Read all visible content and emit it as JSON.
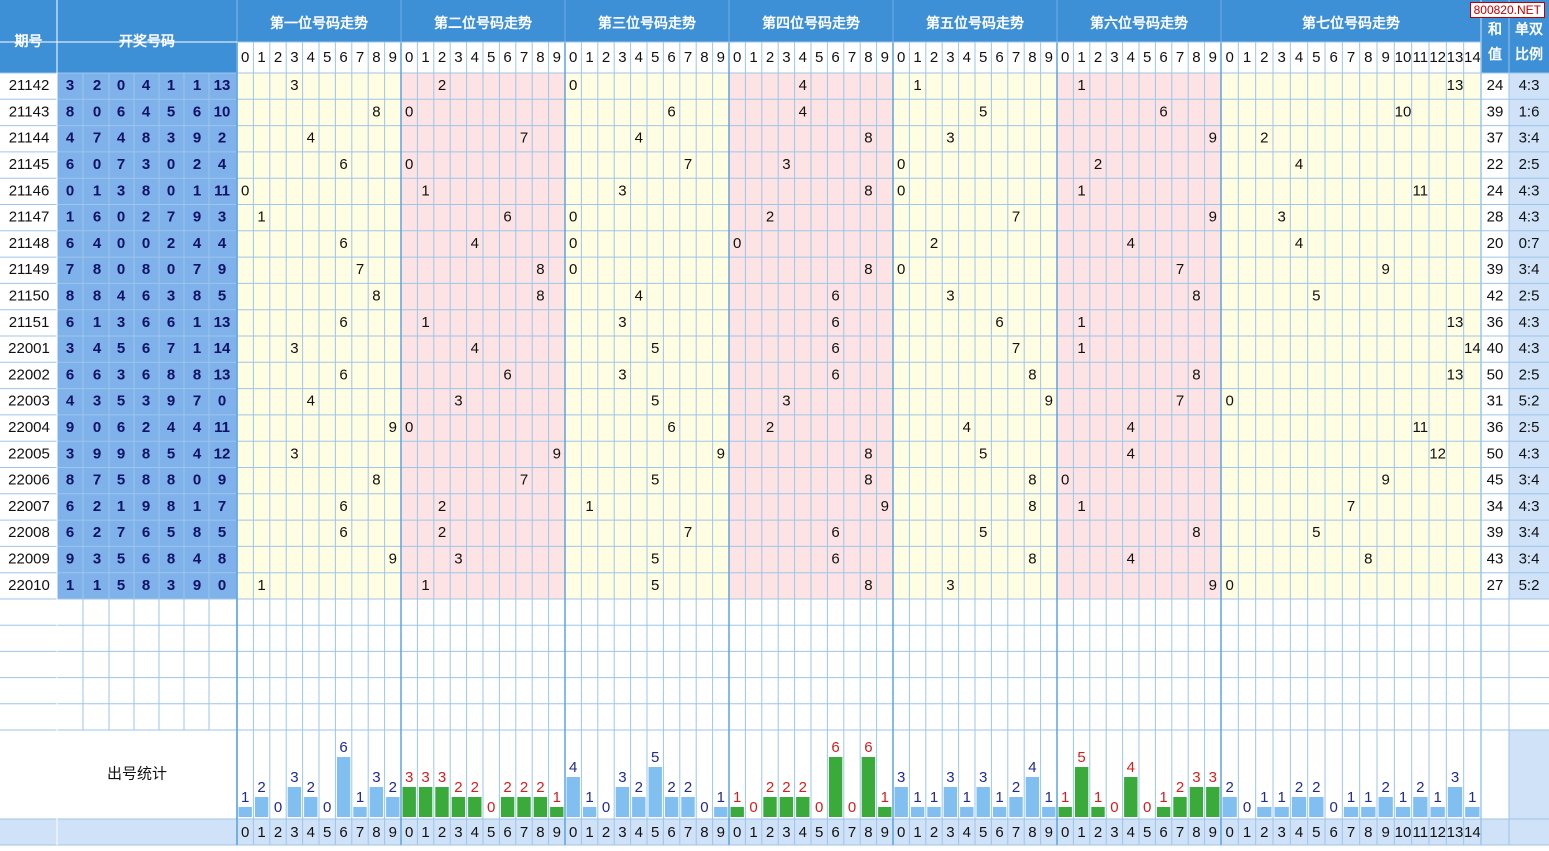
{
  "watermark": "800820.NET",
  "headers": {
    "period": "期号",
    "draw": "开奖号码",
    "sum": "和值",
    "ratio": "单双比例",
    "stats": "出号统计",
    "sections": [
      "第一位号码走势",
      "第二位号码走势",
      "第三位号码走势",
      "第四位号码走势",
      "第五位号码走势",
      "第六位号码走势",
      "第七位号码走势"
    ]
  },
  "colors": {
    "header_bg": "#3d8fd6",
    "draw_bg": "#7fb1ea",
    "yellow": "#fffde2",
    "pink": "#fde3e3",
    "grid": "#9cc6ea",
    "side_bg": "#cfe2f7",
    "bar_blue": "#80bff0",
    "bar_green": "#3aaa3a",
    "stat_blue_text": "#1f2c8a",
    "stat_red_text": "#d11f1f"
  },
  "chart_data": {
    "type": "table",
    "periods": [
      "21142",
      "21143",
      "21144",
      "21145",
      "21146",
      "21147",
      "21148",
      "21149",
      "21150",
      "21151",
      "22001",
      "22002",
      "22003",
      "22004",
      "22005",
      "22006",
      "22007",
      "22008",
      "22009",
      "22010"
    ],
    "draws": [
      [
        3,
        2,
        0,
        4,
        1,
        1,
        13
      ],
      [
        8,
        0,
        6,
        4,
        5,
        6,
        10
      ],
      [
        4,
        7,
        4,
        8,
        3,
        9,
        2
      ],
      [
        6,
        0,
        7,
        3,
        0,
        2,
        4
      ],
      [
        0,
        1,
        3,
        8,
        0,
        1,
        11
      ],
      [
        1,
        6,
        0,
        2,
        7,
        9,
        3
      ],
      [
        6,
        4,
        0,
        0,
        2,
        4,
        4
      ],
      [
        7,
        8,
        0,
        8,
        0,
        7,
        9
      ],
      [
        8,
        8,
        4,
        6,
        3,
        8,
        5
      ],
      [
        6,
        1,
        3,
        6,
        6,
        1,
        13
      ],
      [
        3,
        4,
        5,
        6,
        7,
        1,
        14
      ],
      [
        6,
        6,
        3,
        6,
        8,
        8,
        13
      ],
      [
        4,
        3,
        5,
        3,
        9,
        7,
        0
      ],
      [
        9,
        0,
        6,
        2,
        4,
        4,
        11
      ],
      [
        3,
        9,
        9,
        8,
        5,
        4,
        12
      ],
      [
        8,
        7,
        5,
        8,
        8,
        0,
        9
      ],
      [
        6,
        2,
        1,
        9,
        8,
        1,
        7
      ],
      [
        6,
        2,
        7,
        6,
        5,
        8,
        5
      ],
      [
        9,
        3,
        5,
        6,
        8,
        4,
        8
      ],
      [
        1,
        1,
        5,
        8,
        3,
        9,
        0
      ]
    ],
    "sums": [
      24,
      39,
      37,
      22,
      24,
      28,
      20,
      39,
      42,
      36,
      40,
      50,
      31,
      36,
      50,
      45,
      34,
      39,
      43,
      27
    ],
    "ratios": [
      "4:3",
      "1:6",
      "3:4",
      "2:5",
      "4:3",
      "4:3",
      "0:7",
      "3:4",
      "2:5",
      "4:3",
      "4:3",
      "2:5",
      "5:2",
      "2:5",
      "4:3",
      "3:4",
      "4:3",
      "3:4",
      "3:4",
      "5:2"
    ],
    "digit_labels": [
      "0",
      "1",
      "2",
      "3",
      "4",
      "5",
      "6",
      "7",
      "8",
      "9"
    ],
    "seventh_labels": [
      "0",
      "1",
      "2",
      "3",
      "4",
      "5",
      "6",
      "7",
      "8",
      "9",
      "10",
      "11",
      "12",
      "13",
      "14"
    ],
    "stats": [
      [
        1,
        2,
        0,
        3,
        2,
        0,
        6,
        1,
        3,
        2
      ],
      [
        3,
        3,
        3,
        2,
        2,
        0,
        2,
        2,
        2,
        1
      ],
      [
        4,
        1,
        0,
        3,
        2,
        5,
        2,
        2,
        0,
        1
      ],
      [
        1,
        0,
        2,
        2,
        2,
        0,
        6,
        0,
        6,
        1
      ],
      [
        3,
        1,
        1,
        3,
        1,
        3,
        1,
        2,
        4,
        1
      ],
      [
        1,
        5,
        1,
        0,
        4,
        0,
        1,
        2,
        3,
        3
      ],
      [
        2,
        0,
        1,
        1,
        2,
        2,
        0,
        1,
        1,
        2,
        1,
        2,
        1,
        3,
        1
      ]
    ]
  }
}
